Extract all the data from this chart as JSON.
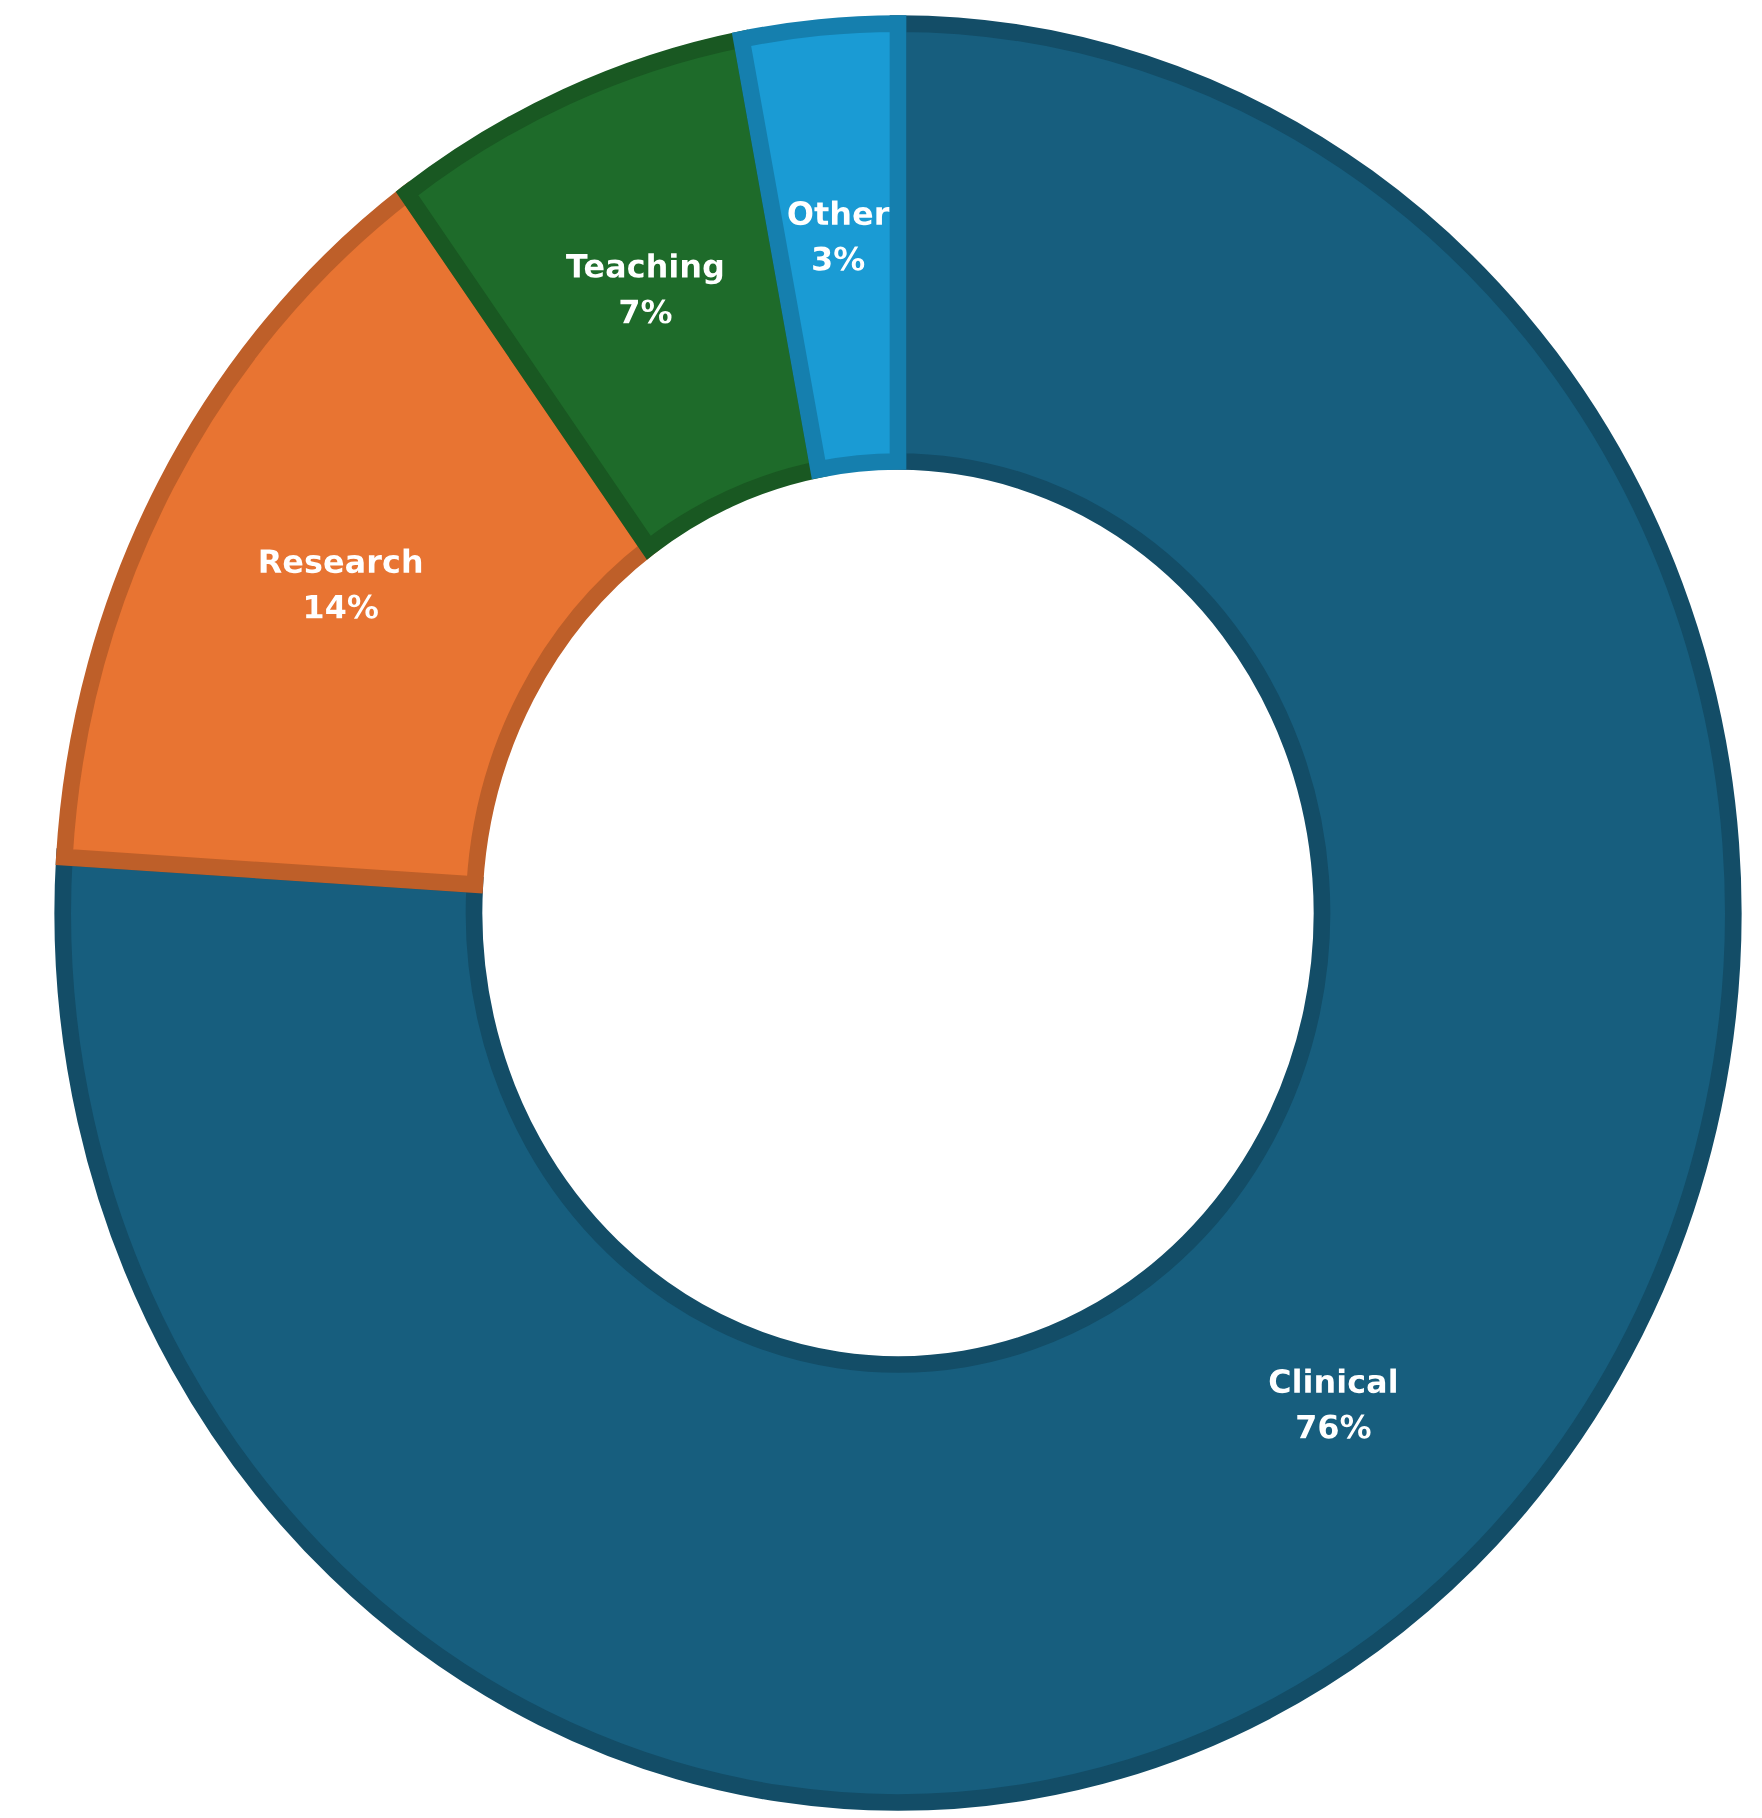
{
  "chart_data": {
    "type": "donut",
    "categories": [
      "Clinical",
      "Research",
      "Teaching",
      "Other"
    ],
    "values": [
      76,
      14,
      7,
      3
    ],
    "colors": [
      "#175e7e",
      "#e87432",
      "#1e6b2a",
      "#1a9bd4"
    ],
    "value_labels": [
      "76%",
      "14%",
      "7%",
      "3%"
    ],
    "legend": false
  }
}
